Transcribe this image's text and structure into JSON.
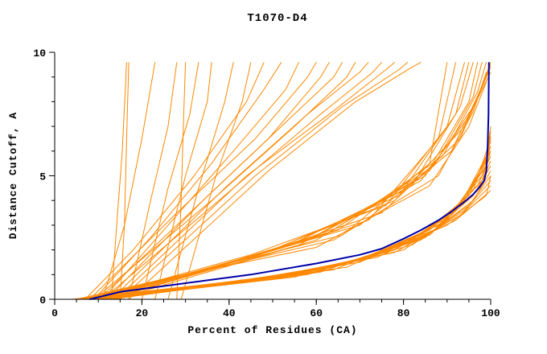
{
  "chart_data": {
    "type": "line",
    "title": "T1070-D4",
    "xlabel": "Percent of Residues (CA)",
    "ylabel": "Distance Cutoff, A",
    "xlim": [
      0,
      100
    ],
    "ylim": [
      0,
      10
    ],
    "x_ticks": [
      0,
      20,
      40,
      60,
      80,
      100
    ],
    "x_minor_step": 5,
    "y_ticks": [
      0,
      5,
      10
    ],
    "y_minor_step": 1,
    "grid": false,
    "legend": "none",
    "model_curves_color": "#ff8800",
    "highlight_color": "#0000a8",
    "model_curves": [
      [
        [
          13,
          0
        ],
        [
          14,
          2.5
        ],
        [
          15.5,
          6
        ],
        [
          16.5,
          9.6
        ]
      ],
      [
        [
          15,
          0
        ],
        [
          16,
          3
        ],
        [
          16.5,
          6.5
        ],
        [
          17,
          9.6
        ]
      ],
      [
        [
          11,
          0
        ],
        [
          16,
          3
        ],
        [
          20,
          6.5
        ],
        [
          23,
          9.6
        ]
      ],
      [
        [
          17,
          0
        ],
        [
          22,
          4
        ],
        [
          26,
          7
        ],
        [
          28,
          9.6
        ]
      ],
      [
        [
          28,
          0
        ],
        [
          29,
          4
        ],
        [
          29.5,
          7
        ],
        [
          30,
          9.6
        ]
      ],
      [
        [
          20,
          0
        ],
        [
          26,
          4.5
        ],
        [
          31,
          7.5
        ],
        [
          33,
          9.6
        ]
      ],
      [
        [
          23,
          0
        ],
        [
          30,
          5
        ],
        [
          35,
          8
        ],
        [
          36,
          9.6
        ]
      ],
      [
        [
          26,
          0
        ],
        [
          33,
          4.5
        ],
        [
          39,
          8
        ],
        [
          41,
          9.6
        ]
      ],
      [
        [
          29,
          0
        ],
        [
          37,
          5
        ],
        [
          43,
          8
        ],
        [
          45,
          9.6
        ]
      ],
      [
        [
          7,
          0
        ],
        [
          18,
          2
        ],
        [
          32,
          5
        ],
        [
          44,
          8
        ],
        [
          48,
          9.6
        ]
      ],
      [
        [
          9,
          0
        ],
        [
          22,
          2.5
        ],
        [
          36,
          5.5
        ],
        [
          48,
          8.5
        ],
        [
          52,
          9.6
        ]
      ],
      [
        [
          11,
          0
        ],
        [
          26,
          3
        ],
        [
          41,
          6
        ],
        [
          53,
          8.5
        ],
        [
          56,
          9.6
        ]
      ],
      [
        [
          8,
          0
        ],
        [
          28,
          3.5
        ],
        [
          46,
          6.5
        ],
        [
          58,
          9
        ],
        [
          60,
          9.6
        ]
      ],
      [
        [
          10,
          0
        ],
        [
          31,
          3.5
        ],
        [
          49,
          6.5
        ],
        [
          61,
          9
        ],
        [
          63,
          9.6
        ]
      ],
      [
        [
          12,
          0
        ],
        [
          34,
          4
        ],
        [
          52,
          7
        ],
        [
          64,
          9
        ],
        [
          66,
          9.6
        ]
      ],
      [
        [
          9,
          0
        ],
        [
          36,
          4
        ],
        [
          55,
          7
        ],
        [
          67,
          9
        ],
        [
          69,
          9.6
        ]
      ],
      [
        [
          13,
          0
        ],
        [
          39,
          4.5
        ],
        [
          58,
          7.5
        ],
        [
          70,
          9.2
        ],
        [
          72,
          9.6
        ]
      ],
      [
        [
          11,
          0
        ],
        [
          41,
          4.5
        ],
        [
          61,
          7.5
        ],
        [
          73,
          9.2
        ],
        [
          75,
          9.6
        ]
      ],
      [
        [
          14,
          0
        ],
        [
          44,
          5
        ],
        [
          63,
          7.5
        ],
        [
          76,
          9.3
        ],
        [
          78,
          9.6
        ]
      ],
      [
        [
          15,
          0
        ],
        [
          46,
          5
        ],
        [
          66,
          7.8
        ],
        [
          79,
          9.3
        ],
        [
          81,
          9.6
        ]
      ],
      [
        [
          17,
          0
        ],
        [
          49,
          5.2
        ],
        [
          69,
          8
        ],
        [
          82,
          9.4
        ],
        [
          84,
          9.6
        ]
      ],
      [
        [
          7,
          0
        ],
        [
          34,
          1.2
        ],
        [
          66,
          2.6
        ],
        [
          86,
          5.5
        ],
        [
          90,
          9.6
        ]
      ],
      [
        [
          9,
          0
        ],
        [
          40,
          1.5
        ],
        [
          72,
          3.2
        ],
        [
          88,
          6.5
        ],
        [
          92,
          9.6
        ]
      ],
      [
        [
          8,
          0
        ],
        [
          45,
          1.8
        ],
        [
          76,
          3.8
        ],
        [
          90,
          7
        ],
        [
          94,
          9.6
        ]
      ],
      [
        [
          10,
          0
        ],
        [
          50,
          2
        ],
        [
          79,
          4.2
        ],
        [
          92,
          7.5
        ],
        [
          95,
          9.6
        ]
      ],
      [
        [
          11,
          0
        ],
        [
          54,
          2.2
        ],
        [
          82,
          4.6
        ],
        [
          93,
          7.8
        ],
        [
          96,
          9.6
        ]
      ],
      [
        [
          12,
          0
        ],
        [
          58,
          2.4
        ],
        [
          85,
          5
        ],
        [
          95,
          8
        ],
        [
          97,
          9.6
        ]
      ],
      [
        [
          10,
          0
        ],
        [
          62,
          2.6
        ],
        [
          87,
          5.4
        ],
        [
          96,
          8.2
        ],
        [
          98,
          9.6
        ]
      ],
      [
        [
          13,
          0
        ],
        [
          65,
          2.8
        ],
        [
          89,
          5.8
        ],
        [
          97,
          8.4
        ],
        [
          99,
          9.6
        ]
      ],
      [
        [
          6,
          0
        ],
        [
          30,
          1
        ],
        [
          64,
          2.4
        ],
        [
          88,
          5
        ],
        [
          96,
          7.6
        ],
        [
          99,
          9.2
        ]
      ],
      [
        [
          7,
          0
        ],
        [
          37,
          1.3
        ],
        [
          70,
          3
        ],
        [
          91,
          6
        ],
        [
          98,
          8.6
        ],
        [
          100,
          9.6
        ]
      ],
      [
        [
          8,
          0
        ],
        [
          43,
          1.6
        ],
        [
          75,
          3.5
        ],
        [
          93,
          6.5
        ],
        [
          99,
          9
        ]
      ],
      [
        [
          9,
          0
        ],
        [
          47,
          1.8
        ],
        [
          78,
          4
        ],
        [
          94,
          7
        ],
        [
          100,
          9.4
        ]
      ],
      [
        [
          12,
          0
        ],
        [
          56,
          2.2
        ],
        [
          84,
          4.8
        ],
        [
          95,
          7.4
        ],
        [
          100,
          9.2
        ]
      ],
      [
        [
          14,
          0
        ],
        [
          60,
          2.4
        ],
        [
          86,
          5.2
        ],
        [
          96,
          7.8
        ],
        [
          100,
          9.5
        ]
      ],
      [
        [
          5,
          0
        ],
        [
          27,
          0.9
        ],
        [
          60,
          2.1
        ],
        [
          86,
          4.6
        ],
        [
          95,
          7
        ],
        [
          99,
          8.8
        ]
      ],
      [
        [
          5,
          0
        ],
        [
          25,
          0.4
        ],
        [
          55,
          1
        ],
        [
          80,
          2
        ],
        [
          94,
          3.6
        ],
        [
          100,
          4.8
        ]
      ],
      [
        [
          6,
          0
        ],
        [
          28,
          0.45
        ],
        [
          58,
          1.1
        ],
        [
          82,
          2.2
        ],
        [
          95,
          3.8
        ],
        [
          100,
          5
        ]
      ],
      [
        [
          7,
          0
        ],
        [
          31,
          0.5
        ],
        [
          61,
          1.2
        ],
        [
          84,
          2.4
        ],
        [
          96,
          4
        ],
        [
          100,
          5.2
        ]
      ],
      [
        [
          8,
          0
        ],
        [
          34,
          0.55
        ],
        [
          64,
          1.3
        ],
        [
          85,
          2.5
        ],
        [
          96,
          4.2
        ],
        [
          100,
          5.4
        ]
      ],
      [
        [
          6,
          0
        ],
        [
          37,
          0.6
        ],
        [
          66,
          1.4
        ],
        [
          86,
          2.6
        ],
        [
          97,
          4.4
        ],
        [
          100,
          5.6
        ]
      ],
      [
        [
          7,
          0
        ],
        [
          40,
          0.65
        ],
        [
          68,
          1.5
        ],
        [
          87,
          2.8
        ],
        [
          97,
          4.6
        ],
        [
          100,
          5.8
        ]
      ],
      [
        [
          8,
          0
        ],
        [
          43,
          0.7
        ],
        [
          70,
          1.6
        ],
        [
          88,
          3
        ],
        [
          98,
          4.8
        ],
        [
          100,
          6
        ]
      ],
      [
        [
          9,
          0
        ],
        [
          46,
          0.75
        ],
        [
          72,
          1.7
        ],
        [
          89,
          3.1
        ],
        [
          98,
          5
        ],
        [
          100,
          6.2
        ]
      ],
      [
        [
          10,
          0
        ],
        [
          49,
          0.8
        ],
        [
          74,
          1.8
        ],
        [
          90,
          3.2
        ],
        [
          98,
          5.2
        ],
        [
          100,
          6.4
        ]
      ],
      [
        [
          9,
          0
        ],
        [
          52,
          0.85
        ],
        [
          76,
          1.9
        ],
        [
          91,
          3.4
        ],
        [
          99,
          5.4
        ],
        [
          100,
          6.6
        ]
      ],
      [
        [
          10,
          0
        ],
        [
          55,
          0.9
        ],
        [
          78,
          2
        ],
        [
          92,
          3.6
        ],
        [
          99,
          5.6
        ],
        [
          100,
          6.8
        ]
      ],
      [
        [
          11,
          0
        ],
        [
          58,
          1
        ],
        [
          80,
          2.2
        ],
        [
          93,
          3.8
        ],
        [
          99,
          5.8
        ],
        [
          100,
          7
        ]
      ],
      [
        [
          12,
          0
        ],
        [
          61,
          1.1
        ],
        [
          82,
          2.4
        ],
        [
          94,
          4
        ],
        [
          100,
          6
        ]
      ],
      [
        [
          11,
          0
        ],
        [
          64,
          1.2
        ],
        [
          84,
          2.6
        ],
        [
          95,
          4.2
        ],
        [
          100,
          6.2
        ]
      ],
      [
        [
          13,
          0
        ],
        [
          67,
          1.3
        ],
        [
          86,
          2.8
        ],
        [
          96,
          4.4
        ],
        [
          100,
          6.5
        ]
      ],
      [
        [
          4,
          0
        ],
        [
          22,
          0.35
        ],
        [
          50,
          0.9
        ],
        [
          78,
          1.9
        ],
        [
          93,
          3.4
        ],
        [
          100,
          4.6
        ]
      ],
      [
        [
          5,
          0
        ],
        [
          20,
          0.3
        ],
        [
          46,
          0.8
        ],
        [
          74,
          1.7
        ],
        [
          92,
          3.2
        ],
        [
          100,
          4.4
        ]
      ],
      [
        [
          6,
          0
        ],
        [
          18,
          0.25
        ],
        [
          42,
          0.7
        ],
        [
          70,
          1.5
        ],
        [
          90,
          3
        ],
        [
          99,
          4.2
        ],
        [
          100,
          5
        ]
      ]
    ],
    "highlight_curve": [
      [
        8,
        0
      ],
      [
        15,
        0.3
      ],
      [
        30,
        0.65
      ],
      [
        45,
        1.0
      ],
      [
        60,
        1.45
      ],
      [
        70,
        1.8
      ],
      [
        75,
        2.05
      ],
      [
        80,
        2.45
      ],
      [
        84,
        2.8
      ],
      [
        88,
        3.2
      ],
      [
        91,
        3.55
      ],
      [
        94,
        3.95
      ],
      [
        96,
        4.25
      ],
      [
        97.5,
        4.55
      ],
      [
        98.5,
        4.8
      ],
      [
        99,
        5.2
      ],
      [
        99.3,
        6.2
      ],
      [
        99.5,
        7.5
      ],
      [
        99.6,
        9.6
      ]
    ]
  }
}
